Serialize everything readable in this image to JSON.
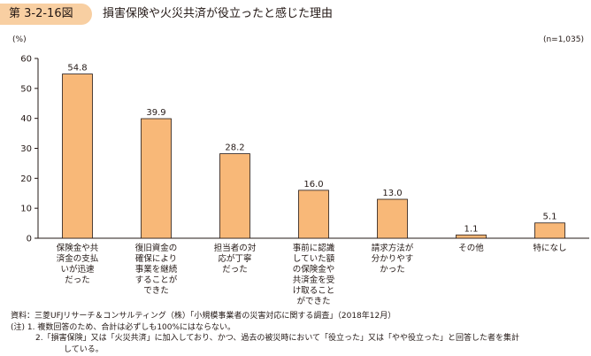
{
  "figure": {
    "number": "第 3-2-16図",
    "title": "損害保険や火災共済が役立ったと感じた理由"
  },
  "chart_data": {
    "type": "bar",
    "title": "損害保険や火災共済が役立ったと感じた理由",
    "unit": "(%)",
    "sample_size": "(n=1,035)",
    "ylim": [
      0,
      60
    ],
    "yticks": [
      0,
      10,
      20,
      30,
      40,
      50,
      60
    ],
    "categories": [
      [
        "保険金や共",
        "済金の支払",
        "いが迅速",
        "だった"
      ],
      [
        "復旧資金の",
        "確保により",
        "事業を継続",
        "することが",
        "できた"
      ],
      [
        "担当者の対",
        "応が丁寧",
        "だった"
      ],
      [
        "事前に認識",
        "していた額",
        "の保険金や",
        "共済金を受",
        "け取ること",
        "ができた"
      ],
      [
        "請求方法が",
        "分かりやす",
        "かった"
      ],
      [
        "その他"
      ],
      [
        "特になし"
      ]
    ],
    "values": [
      54.8,
      39.9,
      28.2,
      16.0,
      13.0,
      1.1,
      5.1
    ],
    "value_labels": [
      "54.8",
      "39.9",
      "28.2",
      "16.0",
      "13.0",
      "1.1",
      "5.1"
    ],
    "bar_color": "#f8b878",
    "bar_stroke": "#231815",
    "grid": false
  },
  "notes": {
    "source": "資料：三菱UFJリサーチ＆コンサルティング（株）「小規模事業者の災害対応に関する調査」（2018年12月）",
    "note1": "(注) 1. 複数回答のため、合計は必ずしも100%にはならない。",
    "note2": "2.「損害保険」又は「火災共済」に加入しており、かつ、過去の被災時において「役立った」又は「やや役立った」と回答した者を集計",
    "note2_cont": "している。"
  }
}
